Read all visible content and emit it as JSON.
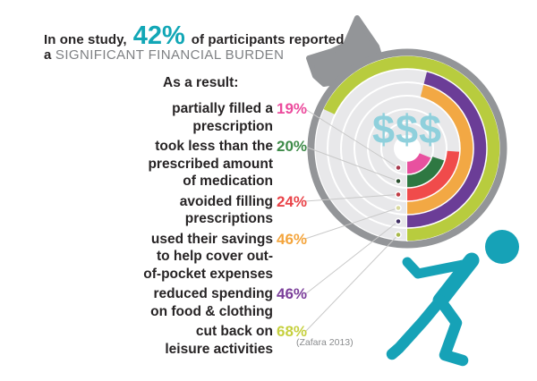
{
  "header": {
    "line1_prefix": "In one study,",
    "line1_stat": "42%",
    "line1_suffix": "of participants reported",
    "line2_prefix": "a",
    "line2_emphasis": "SIGNIFICANT FINANCIAL BURDEN",
    "subheading": "As a result:"
  },
  "citation": "(Zafara 2013)",
  "colors": {
    "accent_teal": "#12a7b6",
    "person_teal": "#16a2b7",
    "dollar_blue": "#8fd0dc",
    "heading_gray": "#7e8083",
    "text_dark": "#272425",
    "circle_border_gray": "#939598",
    "circle_track_gray": "#e8e8ea",
    "leader_line_gray": "#c9c9c9",
    "citation_gray": "#8a8c8e"
  },
  "chart_data": {
    "type": "radial-bar",
    "unit": "%",
    "max": 100,
    "start_angle": "bottom (6 o'clock)",
    "direction": "counterclockwise",
    "rings_order": "inner-to-outer",
    "center_label": "$$$",
    "grid": "concentric white ring separators on gray track",
    "series": [
      {
        "key": "partially-filled",
        "label": "partially filled a prescription",
        "lines": [
          "partially filled a",
          "prescription"
        ],
        "value": 19,
        "ring_color": "#e8519f",
        "label_color": "#ec4b9d",
        "dot_color": "#a83a4e"
      },
      {
        "key": "took-less",
        "label": "took less than the prescribed amount of medication",
        "lines": [
          "took less than the",
          "prescribed amount",
          "of medication"
        ],
        "value": 20,
        "ring_color": "#2e7842",
        "label_color": "#3e8b49",
        "dot_color": "#2a4f2f"
      },
      {
        "key": "avoided-filling",
        "label": "avoided filling prescriptions",
        "lines": [
          "avoided filling",
          "prescriptions"
        ],
        "value": 24,
        "ring_color": "#f04b4b",
        "label_color": "#e94449",
        "dot_color": "#c03c44"
      },
      {
        "key": "used-savings",
        "label": "used their savings to help cover out-of-pocket expenses",
        "lines": [
          "used their savings",
          "to help cover out-",
          "of-pocket expenses"
        ],
        "value": 46,
        "ring_color": "#f2a844",
        "label_color": "#f4a53d",
        "dot_color": "#d8d89c"
      },
      {
        "key": "reduced-spending",
        "label": "reduced spending on food & clothing",
        "lines": [
          "reduced spending",
          "on food & clothing"
        ],
        "value": 46,
        "ring_color": "#6b3d97",
        "label_color": "#7b3f9a",
        "dot_color": "#3f2d62"
      },
      {
        "key": "cut-back-leisure",
        "label": "cut back on leisure activities",
        "lines": [
          "cut back on",
          "leisure activities"
        ],
        "value": 68,
        "ring_color": "#b8cc3e",
        "label_color": "#c6d03f",
        "dot_color": "#a8b84a"
      }
    ]
  }
}
